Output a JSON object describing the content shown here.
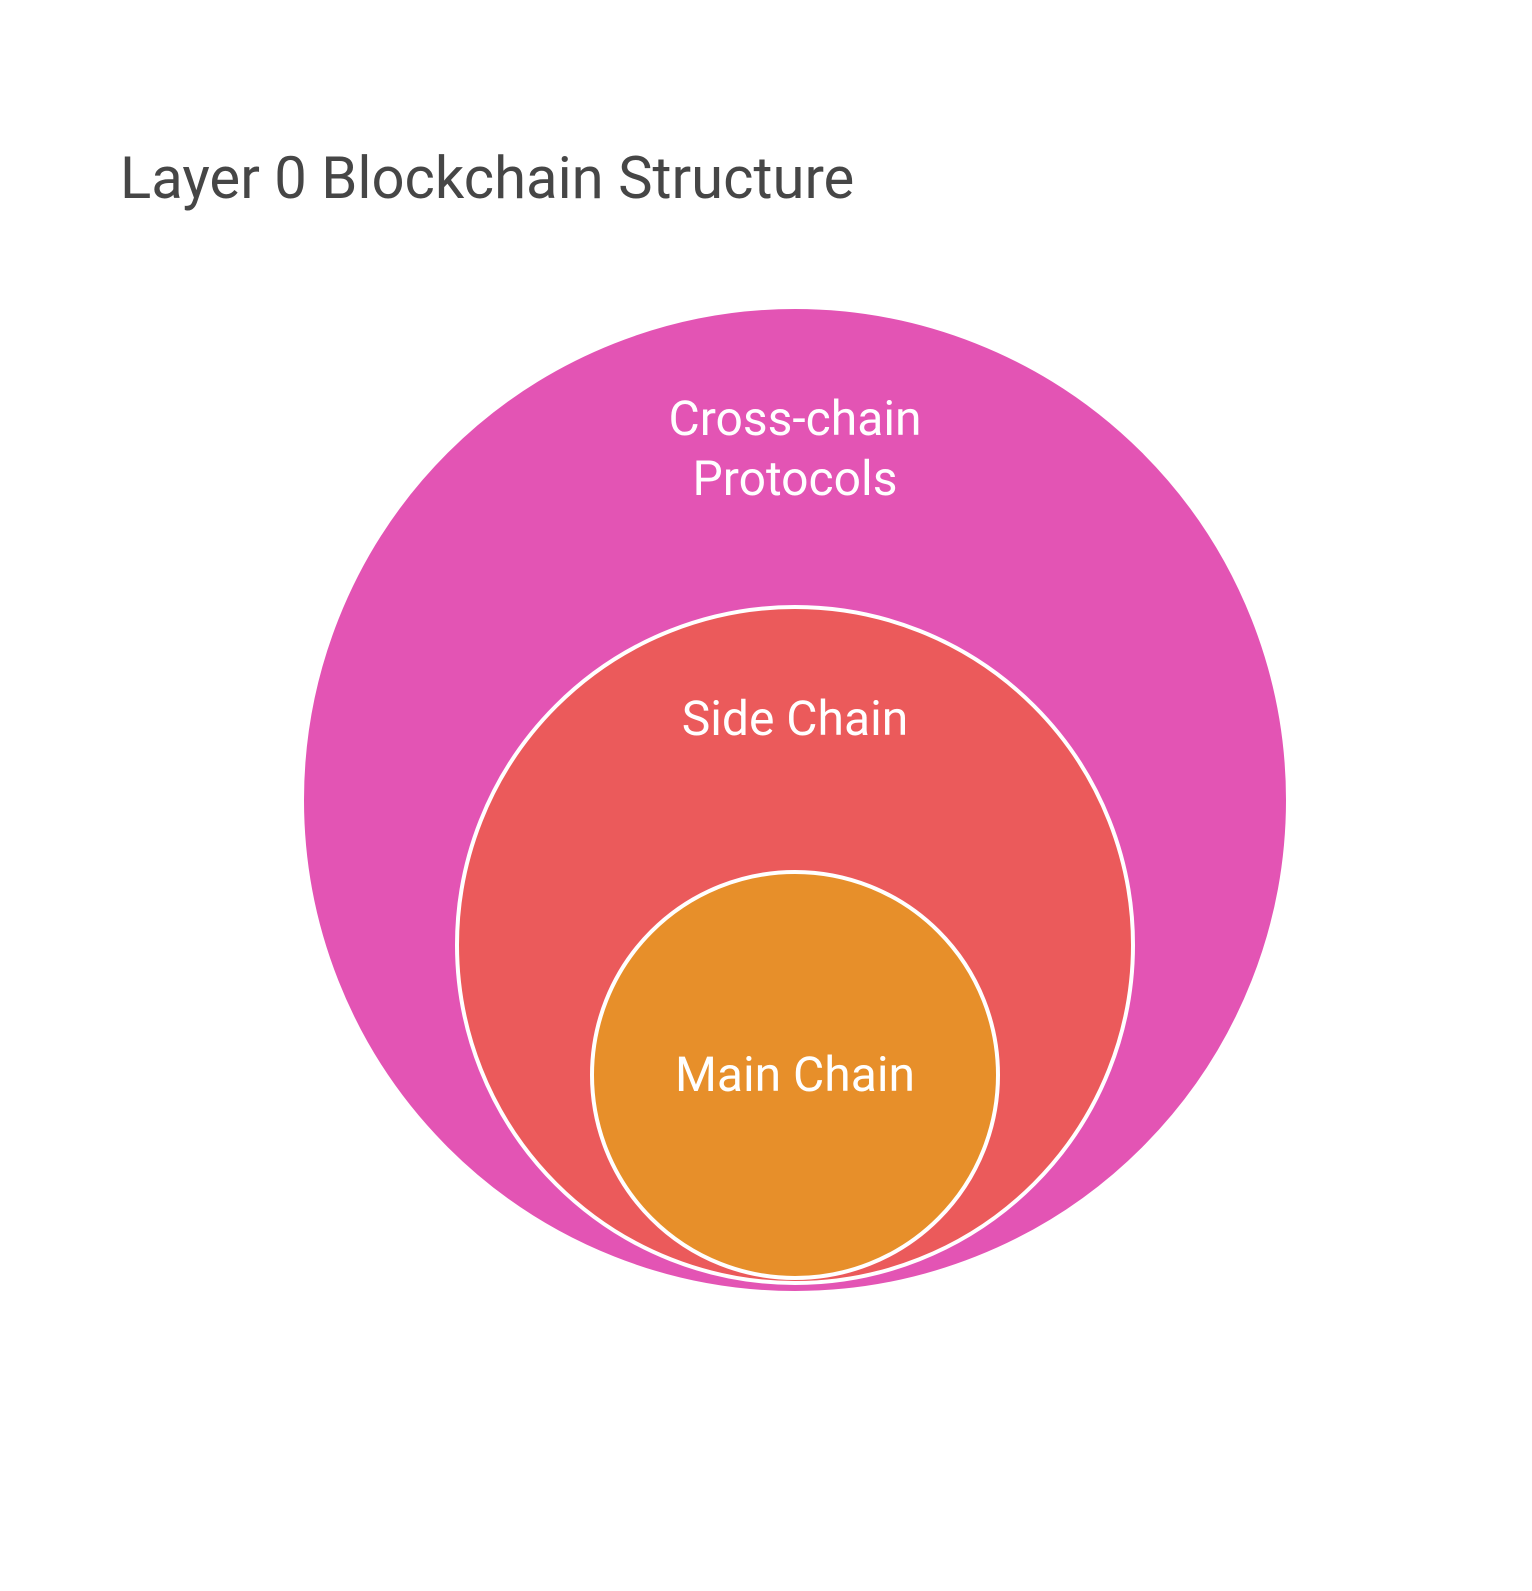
{
  "title": "Layer 0 Blockchain Structure",
  "title_color": "#464646",
  "title_fontsize": 58,
  "background_color": "#ffffff",
  "diagram": {
    "type": "nested-circles",
    "border_color": "#ffffff",
    "border_width": 4,
    "label_color": "#ffffff",
    "label_fontsize": 48,
    "circles": [
      {
        "id": "outer",
        "label": "Cross-chain\nProtocols",
        "fill_color": "#e354b4",
        "diameter": 990
      },
      {
        "id": "middle",
        "label": "Side Chain",
        "fill_color": "#eb5a5b",
        "diameter": 680
      },
      {
        "id": "inner",
        "label": "Main Chain",
        "fill_color": "#e78f2a",
        "diameter": 410
      }
    ]
  }
}
